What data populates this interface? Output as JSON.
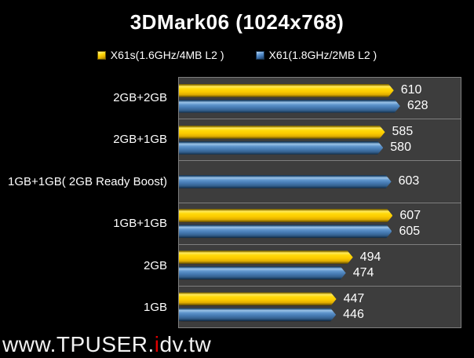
{
  "title": "3DMark06 (1024x768)",
  "watermark": {
    "prefix": "www.TPUSER.",
    "highlight": "i",
    "suffix": "dv.tw"
  },
  "colors": {
    "background": "#000000",
    "plot_background": "#3D3D3D",
    "grid_line": "#7E7E7E",
    "series_yellow": "#FFD90A",
    "series_blue": "#4F87C2",
    "text": "#FFFFFF",
    "watermark_text": "#F2F2F2",
    "watermark_accent": "#E00000"
  },
  "chart_data": {
    "type": "bar",
    "orientation": "horizontal",
    "title": "3DMark06 (1024x768)",
    "categories": [
      "2GB+2GB",
      "2GB+1GB",
      "1GB+1GB( 2GB Ready Boost)",
      "1GB+1GB",
      "2GB",
      "1GB"
    ],
    "series": [
      {
        "name": "X61s(1.6GHz/4MB L2 )",
        "key": "x61s",
        "color_key": "yellow",
        "color": "#FFD90A",
        "values": [
          610,
          585,
          null,
          607,
          494,
          447
        ]
      },
      {
        "name": "X61(1.8GHz/2MB L2 )",
        "key": "x61",
        "color_key": "blue",
        "color": "#4F87C2",
        "values": [
          628,
          580,
          603,
          605,
          474,
          446
        ]
      }
    ],
    "xlim": [
      0,
      800
    ],
    "grid": false,
    "value_labels": true,
    "legend_position": "top"
  }
}
